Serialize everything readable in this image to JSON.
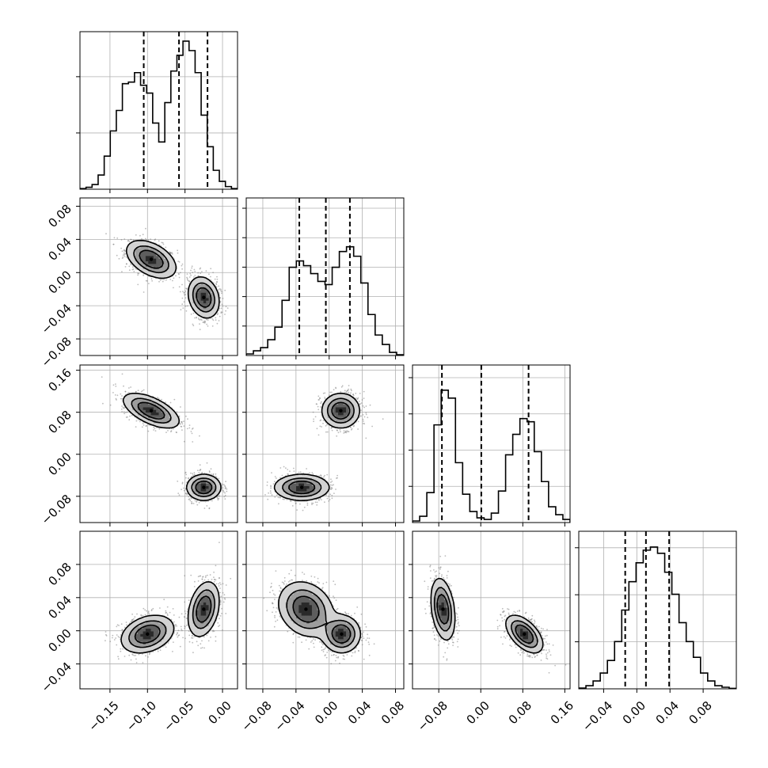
{
  "chart_data": {
    "type": "corner",
    "n_params": 4,
    "grid": true,
    "colors": {
      "line": "#000000",
      "grid": "#b0b0b0",
      "points": "#7a7a7a",
      "background": "#ffffff"
    },
    "ranges": [
      [
        -0.19,
        0.02
      ],
      [
        -0.1,
        0.09
      ],
      [
        -0.13,
        0.17
      ],
      [
        -0.07,
        0.12
      ]
    ],
    "x_ticks": [
      [
        "−0.15",
        "−0.10",
        "−0.05",
        "0.00"
      ],
      [
        "−0.08",
        "−0.04",
        "0.00",
        "0.04",
        "0.08"
      ],
      [
        "−0.08",
        "0.00",
        "0.08",
        "0.16"
      ],
      [
        "−0.04",
        "0.00",
        "0.04",
        "0.08"
      ]
    ],
    "y_ticks": [
      [
        "−0.08",
        "−0.04",
        "0.00",
        "0.04",
        "0.08"
      ],
      [
        "−0.08",
        "0.00",
        "0.08",
        "0.16"
      ],
      [
        "−0.04",
        "0.00",
        "0.04",
        "0.08"
      ]
    ],
    "diag_ytick_counts": [
      2,
      5,
      4,
      3
    ],
    "quantiles": [
      [
        -0.105,
        -0.058,
        -0.02
      ],
      [
        -0.036,
        -0.004,
        0.025
      ],
      [
        -0.074,
        0.001,
        0.091
      ],
      [
        -0.014,
        0.011,
        0.039
      ]
    ],
    "histograms": [
      {
        "bins": [
          -0.19,
          0.02
        ],
        "counts": [
          0.004,
          0.012,
          0.03,
          0.09,
          0.21,
          0.37,
          0.5,
          0.67,
          0.68,
          0.74,
          0.66,
          0.61,
          0.42,
          0.3,
          0.55,
          0.75,
          0.85,
          0.94,
          0.88,
          0.74,
          0.47,
          0.27,
          0.12,
          0.05,
          0.017,
          0.004
        ]
      },
      {
        "bins": [
          -0.1,
          0.09
        ],
        "counts": [
          0.01,
          0.03,
          0.05,
          0.1,
          0.18,
          0.35,
          0.56,
          0.6,
          0.57,
          0.52,
          0.47,
          0.45,
          0.56,
          0.66,
          0.69,
          0.63,
          0.46,
          0.26,
          0.13,
          0.07,
          0.02,
          0.005
        ]
      },
      {
        "bins": [
          -0.13,
          0.17
        ],
        "counts": [
          0.01,
          0.04,
          0.19,
          0.62,
          0.84,
          0.79,
          0.38,
          0.18,
          0.07,
          0.03,
          0.02,
          0.06,
          0.2,
          0.43,
          0.56,
          0.66,
          0.64,
          0.45,
          0.26,
          0.1,
          0.05,
          0.02
        ]
      },
      {
        "bins": [
          -0.07,
          0.12
        ],
        "counts": [
          0.005,
          0.02,
          0.05,
          0.1,
          0.18,
          0.3,
          0.5,
          0.68,
          0.8,
          0.88,
          0.9,
          0.86,
          0.74,
          0.6,
          0.42,
          0.3,
          0.2,
          0.1,
          0.05,
          0.02,
          0.01,
          0.003
        ]
      }
    ],
    "pairs": [
      {
        "row": 1,
        "col": 0,
        "modes": [
          {
            "c": [
              -0.095,
              0.016
            ],
            "sd": [
              0.016,
              0.011
            ],
            "rho": -0.45,
            "w": 0.5
          },
          {
            "c": [
              -0.025,
              -0.03
            ],
            "sd": [
              0.01,
              0.012
            ],
            "rho": -0.2,
            "w": 0.5
          }
        ]
      },
      {
        "row": 2,
        "col": 0,
        "modes": [
          {
            "c": [
              -0.095,
              0.083
            ],
            "sd": [
              0.018,
              0.016
            ],
            "rho": -0.6,
            "w": 0.5
          },
          {
            "c": [
              -0.025,
              -0.063
            ],
            "sd": [
              0.011,
              0.012
            ],
            "rho": 0.0,
            "w": 0.5
          }
        ]
      },
      {
        "row": 2,
        "col": 1,
        "modes": [
          {
            "c": [
              0.014,
              0.083
            ],
            "sd": [
              0.011,
              0.016
            ],
            "rho": 0.0,
            "w": 0.5
          },
          {
            "c": [
              -0.033,
              -0.063
            ],
            "sd": [
              0.016,
              0.012
            ],
            "rho": 0.0,
            "w": 0.5
          }
        ]
      },
      {
        "row": 3,
        "col": 0,
        "modes": [
          {
            "c": [
              -0.1,
              -0.004
            ],
            "sd": [
              0.017,
              0.011
            ],
            "rho": 0.3,
            "w": 0.5
          },
          {
            "c": [
              -0.025,
              0.026
            ],
            "sd": [
              0.01,
              0.016
            ],
            "rho": 0.3,
            "w": 0.5
          }
        ]
      },
      {
        "row": 3,
        "col": 1,
        "modes": [
          {
            "c": [
              -0.028,
              0.026
            ],
            "sd": [
              0.016,
              0.016
            ],
            "rho": -0.2,
            "w": 0.5
          },
          {
            "c": [
              0.015,
              -0.004
            ],
            "sd": [
              0.011,
              0.011
            ],
            "rho": 0.0,
            "w": 0.5
          }
        ]
      },
      {
        "row": 3,
        "col": 2,
        "modes": [
          {
            "c": [
              -0.072,
              0.026
            ],
            "sd": [
              0.011,
              0.018
            ],
            "rho": -0.3,
            "w": 0.5
          },
          {
            "c": [
              0.083,
              -0.004
            ],
            "sd": [
              0.017,
              0.011
            ],
            "rho": -0.55,
            "w": 0.5
          }
        ]
      }
    ]
  }
}
